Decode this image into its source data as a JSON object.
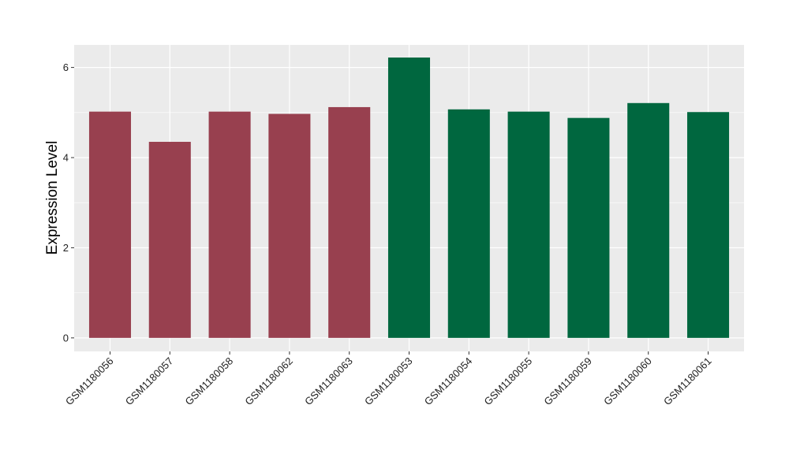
{
  "chart_data": {
    "type": "bar",
    "title": "",
    "xlabel": "",
    "ylabel": "Expression Level",
    "ylim": [
      -0.3,
      6.5
    ],
    "yticks": [
      0,
      2,
      4,
      6
    ],
    "grid": true,
    "legend": "none",
    "categories": [
      "GSM1180056",
      "GSM1180057",
      "GSM1180058",
      "GSM1180062",
      "GSM1180063",
      "GSM1180053",
      "GSM1180054",
      "GSM1180055",
      "GSM1180059",
      "GSM1180060",
      "GSM1180061"
    ],
    "values": [
      5.02,
      4.35,
      5.02,
      4.97,
      5.12,
      6.22,
      5.07,
      5.02,
      4.88,
      5.21,
      5.01
    ],
    "bar_colors": [
      "#98404f",
      "#98404f",
      "#98404f",
      "#98404f",
      "#98404f",
      "#00673f",
      "#00673f",
      "#00673f",
      "#00673f",
      "#00673f",
      "#00673f"
    ],
    "panel_background": "#ebebeb",
    "gridline_color": "#ffffff"
  }
}
